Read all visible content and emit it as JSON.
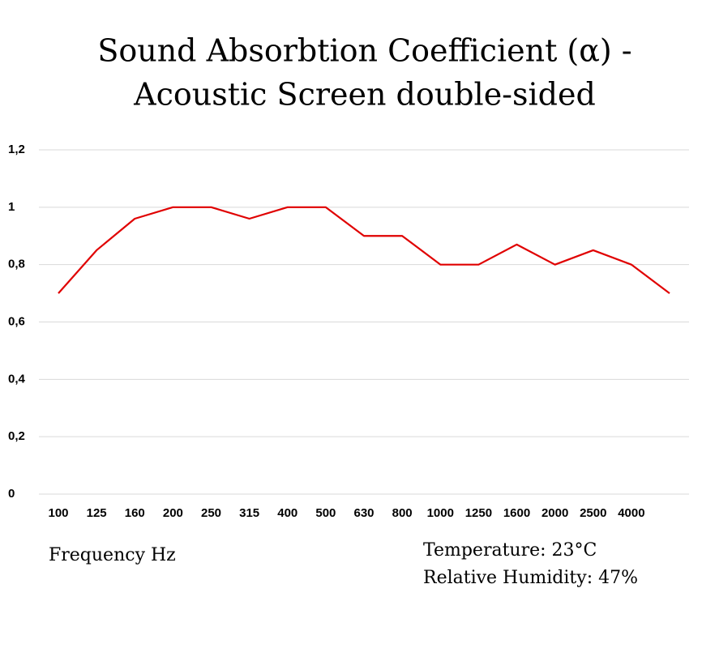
{
  "chart_data": {
    "type": "line",
    "title": [
      "Sound Absorbtion Coefficient (α) -",
      "Acoustic Screen double-sided"
    ],
    "x_label": "Frequency Hz",
    "annotations": [
      "Temperature: 23°C",
      "Relative Humidity: 47%"
    ],
    "categories": [
      "100",
      "125",
      "160",
      "200",
      "250",
      "315",
      "400",
      "500",
      "630",
      "800",
      "1000",
      "1250",
      "1600",
      "2000",
      "2500",
      "4000",
      null
    ],
    "series": [
      {
        "name": "α",
        "color": "#e00000",
        "values": [
          0.7,
          0.85,
          0.96,
          1.0,
          1.0,
          0.96,
          1.0,
          1.0,
          0.9,
          0.9,
          0.8,
          0.8,
          0.87,
          0.8,
          0.85,
          0.8,
          0.7
        ]
      }
    ],
    "ylim": [
      0,
      1.2
    ],
    "yticks": [
      0,
      {
        "value": 0.2,
        "label": "0,2"
      },
      {
        "value": 0.4,
        "label": "0,4"
      },
      {
        "value": 0.6,
        "label": "0,6"
      },
      {
        "value": 0.8,
        "label": "0,8"
      },
      1,
      {
        "value": 1.2,
        "label": "1,2"
      }
    ],
    "grid": true
  }
}
